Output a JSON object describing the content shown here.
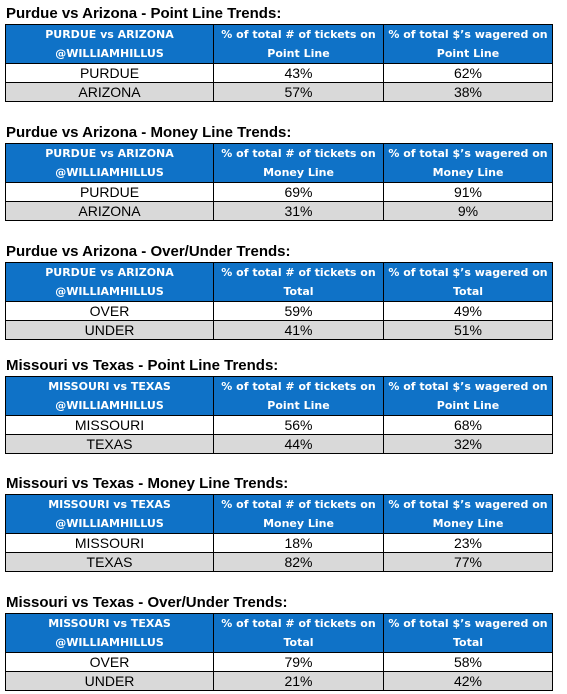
{
  "sections": [
    {
      "title": "Purdue vs Arizona - Point Line Trends:",
      "header": {
        "col1": [
          "PURDUE vs ARIZONA",
          "@WILLIAMHILLUS"
        ],
        "col2": [
          "% of total # of tickets on",
          "Point Line"
        ],
        "col3": [
          "% of total $’s wagered on",
          "Point Line"
        ]
      },
      "rows": [
        {
          "team": "PURDUE",
          "tickets": "43%",
          "wagered": "62%"
        },
        {
          "team": "ARIZONA",
          "tickets": "57%",
          "wagered": "38%"
        }
      ]
    },
    {
      "title": "Purdue vs Arizona - Money Line Trends:",
      "header": {
        "col1": [
          "PURDUE vs ARIZONA",
          "@WILLIAMHILLUS"
        ],
        "col2": [
          "% of total # of tickets on",
          "Money Line"
        ],
        "col3": [
          "% of total $’s wagered on",
          "Money Line"
        ]
      },
      "rows": [
        {
          "team": "PURDUE",
          "tickets": "69%",
          "wagered": "91%"
        },
        {
          "team": "ARIZONA",
          "tickets": "31%",
          "wagered": "9%"
        }
      ]
    },
    {
      "title": "Purdue vs Arizona - Over/Under Trends:",
      "header": {
        "col1": [
          "PURDUE vs ARIZONA",
          "@WILLIAMHILLUS"
        ],
        "col2": [
          "% of total # of tickets on",
          "Total"
        ],
        "col3": [
          "% of total $’s wagered on",
          "Total"
        ]
      },
      "rows": [
        {
          "team": "OVER",
          "tickets": "59%",
          "wagered": "49%"
        },
        {
          "team": "UNDER",
          "tickets": "41%",
          "wagered": "51%"
        }
      ]
    },
    {
      "title": "Missouri vs Texas - Point Line Trends:",
      "header": {
        "col1": [
          "MISSOURI vs TEXAS",
          "@WILLIAMHILLUS"
        ],
        "col2": [
          "% of total # of tickets on",
          "Point Line"
        ],
        "col3": [
          "% of total $’s wagered on",
          "Point Line"
        ]
      },
      "rows": [
        {
          "team": "MISSOURI",
          "tickets": "56%",
          "wagered": "68%"
        },
        {
          "team": "TEXAS",
          "tickets": "44%",
          "wagered": "32%"
        }
      ]
    },
    {
      "title": "Missouri vs Texas - Money Line Trends:",
      "header": {
        "col1": [
          "MISSOURI vs TEXAS",
          "@WILLIAMHILLUS"
        ],
        "col2": [
          "% of total # of tickets on",
          "Money Line"
        ],
        "col3": [
          "% of total $’s wagered on",
          "Money Line"
        ]
      },
      "rows": [
        {
          "team": "MISSOURI",
          "tickets": "18%",
          "wagered": "23%"
        },
        {
          "team": "TEXAS",
          "tickets": "82%",
          "wagered": "77%"
        }
      ]
    },
    {
      "title": "Missouri vs Texas - Over/Under Trends:",
      "header": {
        "col1": [
          "MISSOURI vs TEXAS",
          "@WILLIAMHILLUS"
        ],
        "col2": [
          "% of total # of tickets on",
          "Total"
        ],
        "col3": [
          "% of total $’s wagered on",
          "Total"
        ]
      },
      "rows": [
        {
          "team": "OVER",
          "tickets": "79%",
          "wagered": "58%"
        },
        {
          "team": "UNDER",
          "tickets": "21%",
          "wagered": "42%"
        }
      ]
    }
  ]
}
